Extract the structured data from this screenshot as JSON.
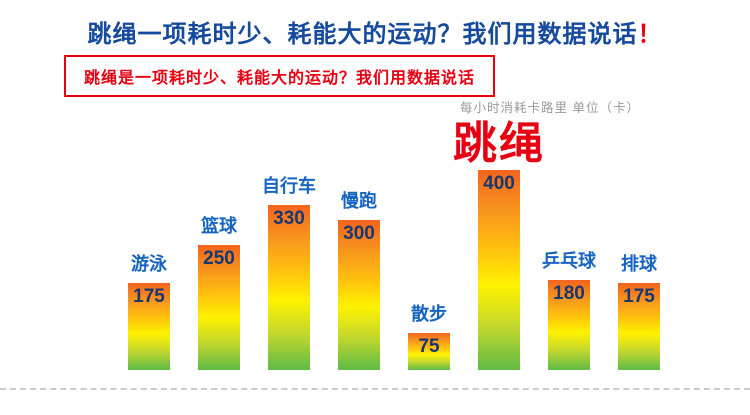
{
  "header": {
    "title_text": "跳绳一项耗时少、耗能大的运动？我们用数据说话",
    "title_exclaim": "！",
    "subtitle": "跳绳是一项耗时少、耗能大的运动？我们用数据说话",
    "unit_note": "每小时消耗卡路里 单位（卡）"
  },
  "colors": {
    "title_blue": "#164a9c",
    "subtitle_red": "#e60012",
    "category_label_blue": "#1565c0",
    "value_navy": "#17386e",
    "highlight_red": "#e60012",
    "unit_gray": "#999999"
  },
  "chart_data": {
    "type": "bar",
    "title": "每小时消耗卡路里 单位（卡）",
    "categories": [
      "游泳",
      "篮球",
      "自行车",
      "慢跑",
      "散步",
      "跳绳",
      "乒乓球",
      "排球"
    ],
    "values": [
      175,
      250,
      330,
      300,
      75,
      400,
      180,
      175
    ],
    "highlight_category": "跳绳",
    "xlabel": "",
    "ylabel": "卡路里（卡）",
    "ylim": [
      0,
      400
    ],
    "grid": false,
    "legend": "none",
    "bar_gradient": [
      "#f3641e 0%",
      "#f7941d 20%",
      "#ffc20e 40%",
      "#fff200 58%",
      "#c4d82d 78%",
      "#5fbb46 100%"
    ]
  }
}
